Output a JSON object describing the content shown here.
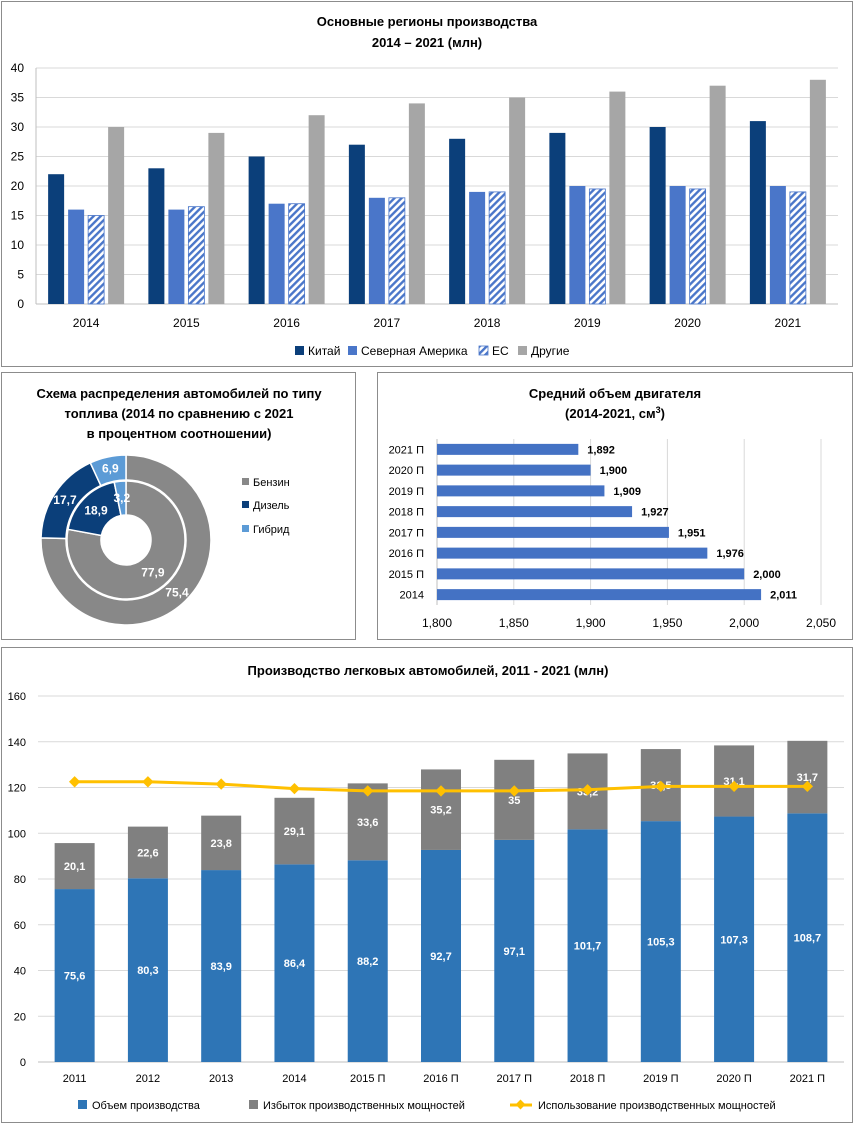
{
  "colors": {
    "china": "#0b3f7a",
    "north_america": "#4a76c9",
    "eu": "#4a76c9",
    "other": "#a6a6a6",
    "petrol": "#888888",
    "diesel": "#0b3f7a",
    "hybrid": "#5c9bd6",
    "engine_bar": "#4472c4",
    "production": "#2e75b6",
    "overcapacity": "#808080",
    "utilization": "#ffc000",
    "grid": "#d9d9d9"
  },
  "chart_data": [
    {
      "id": "regions",
      "type": "bar",
      "title": "Основные регионы производства",
      "subtitle": "2014 – 2021 (млн)",
      "categories": [
        "2014",
        "2015",
        "2016",
        "2017",
        "2018",
        "2019",
        "2020",
        "2021"
      ],
      "series": [
        {
          "name": "Китай",
          "values": [
            22,
            23,
            25,
            27,
            28,
            29,
            30,
            31
          ]
        },
        {
          "name": "Северная  Америка",
          "values": [
            16,
            16,
            17,
            18,
            19,
            20,
            20,
            20
          ]
        },
        {
          "name": "ЕС",
          "values": [
            15,
            16.5,
            17,
            18,
            19,
            19.5,
            19.5,
            19
          ]
        },
        {
          "name": "Другие",
          "values": [
            30,
            29,
            32,
            34,
            35,
            36,
            37,
            38
          ]
        }
      ],
      "ylim": [
        0,
        40
      ],
      "yticks": [
        "0",
        "5",
        "10",
        "15",
        "20",
        "25",
        "30",
        "35",
        "40"
      ],
      "grid": true,
      "legend": "bottom"
    },
    {
      "id": "fuel",
      "type": "pie",
      "title_lines": [
        "Схема  распределения автомобилей по типу",
        "топлива (2014 по сравнению с 2021",
        "в процентном соотношении)"
      ],
      "categories": [
        "Бензин",
        "Дизель",
        "Гибрид"
      ],
      "outer": {
        "values": [
          75.4,
          17.7,
          6.9
        ],
        "labels": [
          "75,4",
          "17,7",
          "6,9"
        ]
      },
      "inner": {
        "values": [
          77.9,
          18.9,
          3.2
        ],
        "labels": [
          "77,9",
          "18,9",
          "3,2"
        ]
      },
      "legend": "right"
    },
    {
      "id": "engine",
      "type": "bar",
      "orientation": "horizontal",
      "title_line1": "Средний объем двигателя",
      "title_line2": "(2014-2021, см",
      "title_sup": "3",
      "title_end": ")",
      "categories": [
        "2021 П",
        "2020 П",
        "2019 П",
        "2018 П",
        "2017 П",
        "2016 П",
        "2015 П",
        "2014"
      ],
      "values": [
        1.892,
        1.9,
        1.909,
        1.927,
        1.951,
        1.976,
        2.0,
        2.011
      ],
      "labels": [
        "1,892",
        "1,900",
        "1,909",
        "1,927",
        "1,951",
        "1,976",
        "2,000",
        "2,011"
      ],
      "xlim": [
        1.8,
        2.05
      ],
      "xticks": [
        "1,800",
        "1,850",
        "1,900",
        "1,950",
        "2,000",
        "2,050"
      ],
      "grid": true
    },
    {
      "id": "production",
      "type": "bar",
      "stacked": true,
      "title": "Производство легковых автомобилей, 2011 - 2021 (млн)",
      "categories": [
        "2011",
        "2012",
        "2013",
        "2014",
        "2015 П",
        "2016 П",
        "2017 П",
        "2018 П",
        "2019 П",
        "2020 П",
        "2021 П"
      ],
      "series": [
        {
          "name": "Объем производства",
          "values": [
            75.6,
            80.3,
            83.9,
            86.4,
            88.2,
            92.7,
            97.1,
            101.7,
            105.3,
            107.3,
            108.7
          ],
          "labels": [
            "75,6",
            "80,3",
            "83,9",
            "86,4",
            "88,2",
            "92,7",
            "97,1",
            "101,7",
            "105,3",
            "107,3",
            "108,7"
          ]
        },
        {
          "name": "Избыток производственных мощностей",
          "values": [
            20.1,
            22.6,
            23.8,
            29.1,
            33.6,
            35.2,
            35,
            33.2,
            31.5,
            31.1,
            31.7
          ],
          "labels": [
            "20,1",
            "22,6",
            "23,8",
            "29,1",
            "33,6",
            "35,2",
            "35",
            "33,2",
            "31,5",
            "31,1",
            "31,7"
          ]
        },
        {
          "name": "Использование производственных мощностей",
          "type": "line",
          "values": [
            122.5,
            122.5,
            121.5,
            119.5,
            118.5,
            118.5,
            118.5,
            119,
            120.5,
            120.5,
            120.5
          ]
        }
      ],
      "ylim": [
        0,
        160
      ],
      "yticks": [
        "0",
        "20",
        "40",
        "60",
        "80",
        "100",
        "120",
        "140",
        "160"
      ],
      "grid": true,
      "legend": "bottom"
    }
  ]
}
